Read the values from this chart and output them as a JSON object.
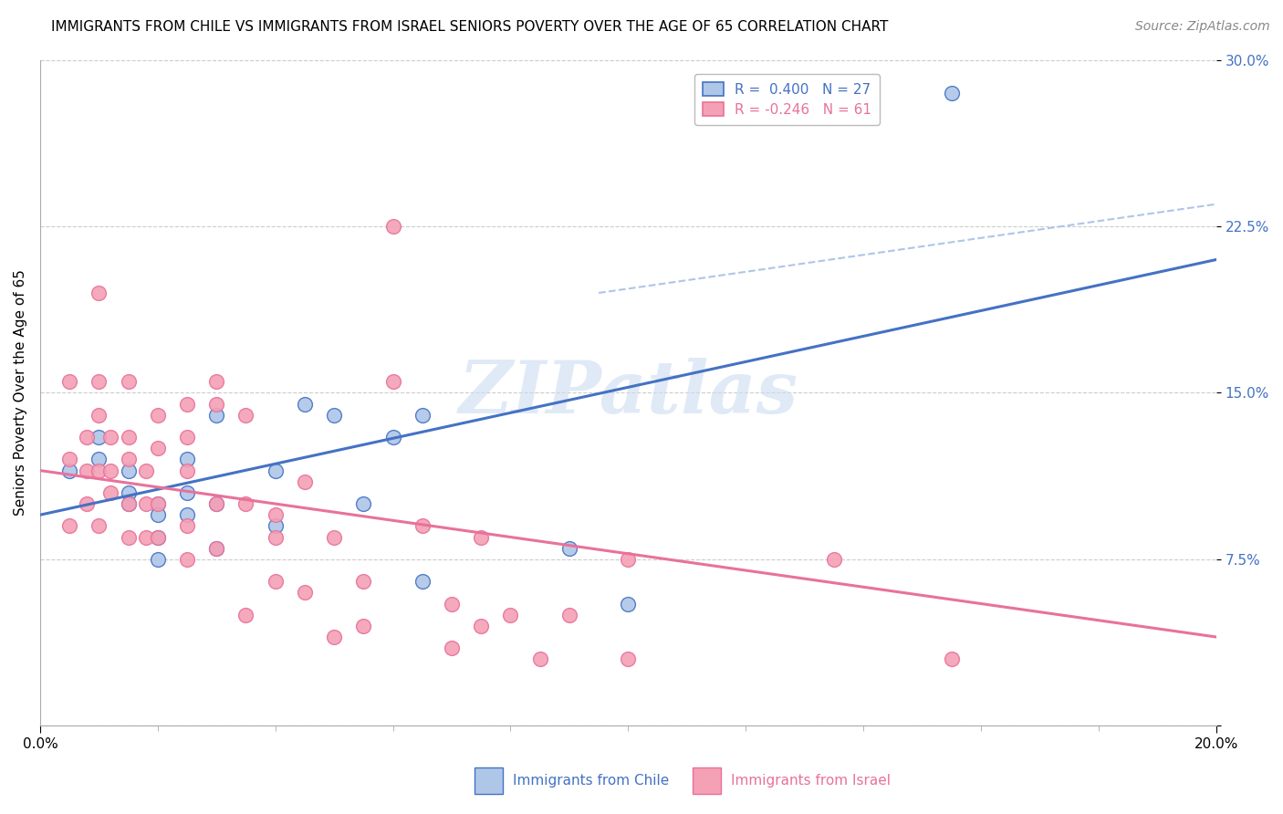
{
  "title": "IMMIGRANTS FROM CHILE VS IMMIGRANTS FROM ISRAEL SENIORS POVERTY OVER THE AGE OF 65 CORRELATION CHART",
  "source": "Source: ZipAtlas.com",
  "ylabel": "Seniors Poverty Over the Age of 65",
  "x_min": 0.0,
  "x_max": 0.2,
  "y_min": 0.0,
  "y_max": 0.3,
  "y_ticks": [
    0.0,
    0.075,
    0.15,
    0.225,
    0.3
  ],
  "y_tick_labels": [
    "",
    "7.5%",
    "15.0%",
    "22.5%",
    "30.0%"
  ],
  "legend_chile_r": "R =  0.400",
  "legend_chile_n": "N = 27",
  "legend_israel_r": "R = -0.246",
  "legend_israel_n": "N = 61",
  "chile_color": "#aec6e8",
  "israel_color": "#f4a0b5",
  "chile_line_color": "#4472c4",
  "israel_line_color": "#e8729a",
  "dashed_line_color": "#aec6e8",
  "watermark": "ZIPatlas",
  "chile_scatter_x": [
    0.005,
    0.01,
    0.01,
    0.015,
    0.015,
    0.015,
    0.02,
    0.02,
    0.02,
    0.02,
    0.025,
    0.025,
    0.025,
    0.03,
    0.03,
    0.03,
    0.04,
    0.04,
    0.045,
    0.05,
    0.055,
    0.06,
    0.065,
    0.065,
    0.09,
    0.1,
    0.155
  ],
  "chile_scatter_y": [
    0.115,
    0.13,
    0.12,
    0.105,
    0.115,
    0.1,
    0.1,
    0.095,
    0.085,
    0.075,
    0.12,
    0.105,
    0.095,
    0.14,
    0.1,
    0.08,
    0.115,
    0.09,
    0.145,
    0.14,
    0.1,
    0.13,
    0.065,
    0.14,
    0.08,
    0.055,
    0.285
  ],
  "israel_scatter_x": [
    0.005,
    0.005,
    0.005,
    0.008,
    0.008,
    0.008,
    0.01,
    0.01,
    0.01,
    0.01,
    0.01,
    0.012,
    0.012,
    0.012,
    0.015,
    0.015,
    0.015,
    0.015,
    0.015,
    0.018,
    0.018,
    0.018,
    0.02,
    0.02,
    0.02,
    0.02,
    0.025,
    0.025,
    0.025,
    0.025,
    0.025,
    0.03,
    0.03,
    0.03,
    0.03,
    0.035,
    0.035,
    0.035,
    0.04,
    0.04,
    0.04,
    0.045,
    0.045,
    0.05,
    0.05,
    0.055,
    0.055,
    0.06,
    0.06,
    0.065,
    0.07,
    0.07,
    0.075,
    0.075,
    0.08,
    0.085,
    0.09,
    0.1,
    0.1,
    0.135,
    0.155
  ],
  "israel_scatter_y": [
    0.155,
    0.12,
    0.09,
    0.13,
    0.115,
    0.1,
    0.195,
    0.155,
    0.14,
    0.115,
    0.09,
    0.13,
    0.115,
    0.105,
    0.155,
    0.13,
    0.12,
    0.1,
    0.085,
    0.115,
    0.1,
    0.085,
    0.14,
    0.125,
    0.1,
    0.085,
    0.145,
    0.13,
    0.115,
    0.09,
    0.075,
    0.155,
    0.145,
    0.1,
    0.08,
    0.14,
    0.1,
    0.05,
    0.095,
    0.085,
    0.065,
    0.11,
    0.06,
    0.085,
    0.04,
    0.065,
    0.045,
    0.225,
    0.155,
    0.09,
    0.055,
    0.035,
    0.085,
    0.045,
    0.05,
    0.03,
    0.05,
    0.075,
    0.03,
    0.075,
    0.03
  ],
  "chile_line_x": [
    0.0,
    0.2
  ],
  "chile_line_y": [
    0.095,
    0.21
  ],
  "israel_line_x": [
    0.0,
    0.2
  ],
  "israel_line_y": [
    0.115,
    0.04
  ],
  "dashed_line_x": [
    0.095,
    0.2
  ],
  "dashed_line_y": [
    0.195,
    0.235
  ],
  "background_color": "#ffffff",
  "grid_color": "#cccccc",
  "title_fontsize": 11,
  "axis_label_fontsize": 11,
  "tick_fontsize": 11,
  "legend_fontsize": 11,
  "source_fontsize": 10,
  "bottom_legend_chile": "Immigrants from Chile",
  "bottom_legend_israel": "Immigrants from Israel"
}
